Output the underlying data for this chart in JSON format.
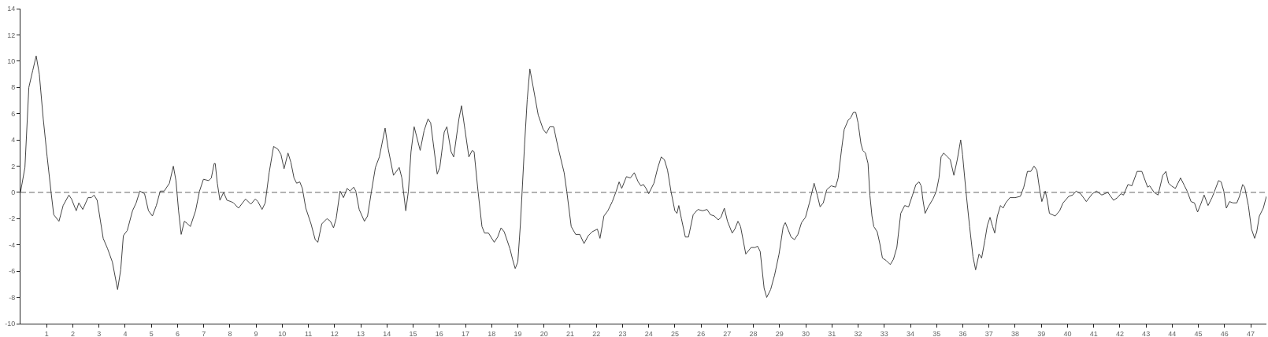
{
  "chart_data": {
    "type": "line",
    "x": [
      0,
      0.17,
      0.32,
      0.47,
      0.6,
      0.72,
      0.87,
      1.02,
      1.17,
      1.27,
      1.47,
      1.63,
      1.85,
      1.95,
      2.13,
      2.23,
      2.38,
      2.58,
      2.71,
      2.81,
      2.93,
      3.16,
      3.33,
      3.51,
      3.71,
      3.83,
      3.93,
      4.08,
      4.28,
      4.42,
      4.56,
      4.74,
      4.89,
      5.04,
      5.19,
      5.34,
      5.49,
      5.69,
      5.84,
      5.94,
      6.04,
      6.14,
      6.26,
      6.39,
      6.49,
      6.69,
      6.84,
      6.99,
      7.19,
      7.29,
      7.4,
      7.44,
      7.52,
      7.62,
      7.76,
      7.89,
      8.04,
      8.14,
      8.33,
      8.6,
      8.8,
      8.97,
      9.07,
      9.23,
      9.35,
      9.5,
      9.67,
      9.83,
      9.95,
      10.07,
      10.22,
      10.33,
      10.45,
      10.55,
      10.67,
      10.77,
      10.9,
      11.1,
      11.26,
      11.36,
      11.51,
      11.71,
      11.84,
      11.96,
      12.06,
      12.21,
      12.34,
      12.48,
      12.59,
      12.73,
      12.81,
      12.94,
      13.14,
      13.26,
      13.41,
      13.56,
      13.71,
      13.81,
      13.93,
      14.05,
      14.25,
      14.47,
      14.57,
      14.72,
      14.82,
      14.92,
      15.04,
      15.27,
      15.42,
      15.57,
      15.67,
      15.92,
      16.02,
      16.19,
      16.29,
      16.45,
      16.55,
      16.75,
      16.85,
      16.98,
      17.13,
      17.26,
      17.33,
      17.48,
      17.63,
      17.73,
      17.88,
      18.1,
      18.23,
      18.36,
      18.48,
      18.7,
      18.8,
      18.9,
      19,
      19.1,
      19.26,
      19.36,
      19.46,
      19.58,
      19.78,
      19.97,
      20.09,
      20.22,
      20.37,
      20.54,
      20.77,
      20.87,
      21.04,
      21.21,
      21.37,
      21.53,
      21.69,
      21.84,
      22.04,
      22.14,
      22.29,
      22.44,
      22.61,
      22.76,
      22.87,
      22.97,
      23.15,
      23.3,
      23.45,
      23.6,
      23.7,
      23.8,
      23.9,
      24,
      24.2,
      24.35,
      24.48,
      24.6,
      24.72,
      24.85,
      25,
      25.08,
      25.15,
      25.25,
      25.4,
      25.52,
      25.7,
      25.88,
      26.06,
      26.23,
      26.36,
      26.51,
      26.66,
      26.76,
      26.89,
      27.01,
      27.19,
      27.29,
      27.41,
      27.51,
      27.71,
      27.91,
      28.06,
      28.16,
      28.26,
      28.41,
      28.51,
      28.66,
      28.81,
      28.98,
      29.14,
      29.22,
      29.32,
      29.44,
      29.57,
      29.7,
      29.84,
      29.99,
      30.14,
      30.32,
      30.44,
      30.55,
      30.67,
      30.8,
      30.97,
      31.14,
      31.24,
      31.37,
      31.47,
      31.62,
      31.72,
      31.82,
      31.91,
      32,
      32.11,
      32.18,
      32.28,
      32.38,
      32.45,
      32.53,
      32.6,
      32.73,
      32.83,
      32.93,
      33.08,
      33.23,
      33.35,
      33.48,
      33.63,
      33.78,
      33.93,
      34.08,
      34.21,
      34.33,
      34.41,
      34.48,
      34.56,
      34.68,
      34.86,
      34.99,
      35.09,
      35.17,
      35.27,
      35.42,
      35.52,
      35.66,
      35.79,
      35.92,
      35.99,
      36.12,
      36.26,
      36.39,
      36.49,
      36.62,
      36.72,
      36.84,
      36.94,
      37.04,
      37.14,
      37.22,
      37.32,
      37.44,
      37.54,
      37.64,
      37.8,
      38,
      38.2,
      38.33,
      38.47,
      38.6,
      38.72,
      38.83,
      38.93,
      39.02,
      39.15,
      39.23,
      39.31,
      39.53,
      39.7,
      39.83,
      40.05,
      40.2,
      40.33,
      40.5,
      40.72,
      40.95,
      41.11,
      41.31,
      41.54,
      41.76,
      41.91,
      42.04,
      42.14,
      42.31,
      42.46,
      42.66,
      42.84,
      43.06,
      43.14,
      43.31,
      43.46,
      43.64,
      43.76,
      43.86,
      43.97,
      44.12,
      44.32,
      44.47,
      44.57,
      44.72,
      44.85,
      44.97,
      45.09,
      45.22,
      45.37,
      45.52,
      45.62,
      45.77,
      45.87,
      45.97,
      46.07,
      46.19,
      46.32,
      46.47,
      46.57,
      46.69,
      46.77,
      46.91,
      47.03,
      47.15,
      47.23,
      47.33,
      47.48,
      47.6
    ],
    "series": [
      {
        "color": "#444444",
        "values": [
          0,
          1.9,
          8.0,
          9.3,
          10.4,
          9.0,
          5.6,
          2.7,
          0,
          -1.7,
          -2.2,
          -1.0,
          -0.2,
          -0.5,
          -1.4,
          -0.8,
          -1.3,
          -0.4,
          -0.4,
          -0.2,
          -0.6,
          -3.5,
          -4.3,
          -5.3,
          -7.4,
          -5.9,
          -3.3,
          -2.9,
          -1.4,
          -0.8,
          0.1,
          -0.1,
          -1.4,
          -1.8,
          -1.0,
          0.1,
          0.1,
          0.7,
          2.0,
          0.9,
          -1.4,
          -3.2,
          -2.2,
          -2.4,
          -2.6,
          -1.4,
          0.1,
          1.0,
          0.9,
          1.1,
          2.2,
          2.2,
          0.7,
          -0.6,
          0,
          -0.6,
          -0.7,
          -0.8,
          -1.2,
          -0.5,
          -0.9,
          -0.5,
          -0.7,
          -1.3,
          -0.8,
          1.5,
          3.5,
          3.3,
          2.9,
          1.8,
          3.0,
          2.3,
          1.1,
          0.7,
          0.8,
          0.3,
          -1.2,
          -2.4,
          -3.6,
          -3.8,
          -2.4,
          -2.0,
          -2.2,
          -2.7,
          -2.0,
          0.1,
          -0.4,
          0.3,
          0.1,
          0.4,
          0.1,
          -1.3,
          -2.2,
          -1.8,
          0.1,
          1.9,
          2.7,
          3.7,
          4.9,
          3.3,
          1.3,
          1.9,
          1.1,
          -1.4,
          0.1,
          3.1,
          5.0,
          3.2,
          4.7,
          5.6,
          5.3,
          1.4,
          1.9,
          4.6,
          5.0,
          3.1,
          2.7,
          5.6,
          6.6,
          4.8,
          2.7,
          3.2,
          3.1,
          0.1,
          -2.6,
          -3.1,
          -3.1,
          -3.8,
          -3.4,
          -2.7,
          -3.0,
          -4.3,
          -5.1,
          -5.8,
          -5.3,
          -2.4,
          3.7,
          7.1,
          9.4,
          8.1,
          5.9,
          4.8,
          4.5,
          5.0,
          5.0,
          3.4,
          1.5,
          0.1,
          -2.6,
          -3.2,
          -3.2,
          -3.9,
          -3.3,
          -3.0,
          -2.8,
          -3.5,
          -1.8,
          -1.4,
          -0.7,
          0.1,
          0.8,
          0.3,
          1.2,
          1.1,
          1.5,
          0.8,
          0.5,
          0.6,
          0.3,
          -0.1,
          0.7,
          1.9,
          2.7,
          2.5,
          1.7,
          0.1,
          -1.4,
          -1.6,
          -1.0,
          -2.0,
          -3.4,
          -3.4,
          -1.7,
          -1.3,
          -1.4,
          -1.3,
          -1.7,
          -1.8,
          -2.1,
          -1.9,
          -1.2,
          -2.2,
          -3.1,
          -2.8,
          -2.2,
          -2.6,
          -4.7,
          -4.2,
          -4.2,
          -4.1,
          -4.5,
          -7.3,
          -8.0,
          -7.4,
          -6.3,
          -4.7,
          -2.6,
          -2.3,
          -2.8,
          -3.4,
          -3.6,
          -3.2,
          -2.3,
          -1.9,
          -0.8,
          0.7,
          -0.2,
          -1.1,
          -0.8,
          0.2,
          0.5,
          0.4,
          1.1,
          3.3,
          4.8,
          5.5,
          5.7,
          6.1,
          6.1,
          5.3,
          3.7,
          3.2,
          3.0,
          2.2,
          -0.2,
          -1.8,
          -2.6,
          -3.0,
          -3.9,
          -5.0,
          -5.2,
          -5.5,
          -5.1,
          -4.2,
          -1.6,
          -1.0,
          -1.1,
          -0.2,
          0.6,
          0.8,
          0.5,
          -0.6,
          -1.6,
          -1.1,
          -0.5,
          0.1,
          1.1,
          2.7,
          3.0,
          2.7,
          2.5,
          1.3,
          2.5,
          4.0,
          2.9,
          0.1,
          -2.6,
          -4.9,
          -5.9,
          -4.7,
          -5.0,
          -3.7,
          -2.5,
          -1.9,
          -2.6,
          -3.1,
          -1.8,
          -1.0,
          -1.2,
          -0.8,
          -0.4,
          -0.4,
          -0.3,
          0.4,
          1.6,
          1.6,
          2.0,
          1.7,
          0.3,
          -0.7,
          0.1,
          -0.6,
          -1.6,
          -1.8,
          -1.4,
          -0.8,
          -0.3,
          -0.2,
          0.1,
          -0.1,
          -0.7,
          -0.1,
          0.1,
          -0.2,
          0,
          -0.6,
          -0.4,
          -0.1,
          -0.2,
          0.6,
          0.5,
          1.6,
          1.6,
          0.4,
          0.5,
          0,
          -0.2,
          1.3,
          1.6,
          0.7,
          0.5,
          0.3,
          1.1,
          0.5,
          0.1,
          -0.7,
          -0.8,
          -1.5,
          -0.9,
          -0.2,
          -1.0,
          -0.4,
          0.1,
          0.9,
          0.8,
          0.1,
          -1.2,
          -0.7,
          -0.8,
          -0.8,
          -0.3,
          0.6,
          0.4,
          -1.0,
          -2.8,
          -3.5,
          -3.0,
          -1.8,
          -1.2,
          -0.3
        ]
      }
    ],
    "xlim": [
      0,
      47.6
    ],
    "xticks": [
      1,
      2,
      3,
      4,
      5,
      6,
      7,
      8,
      9,
      10,
      11,
      12,
      13,
      14,
      15,
      16,
      17,
      18,
      19,
      20,
      21,
      22,
      23,
      24,
      25,
      26,
      27,
      28,
      29,
      30,
      31,
      32,
      33,
      34,
      35,
      36,
      37,
      38,
      39,
      40,
      41,
      42,
      43,
      44,
      45,
      46,
      47
    ],
    "ylim": [
      -10,
      14
    ],
    "yticks": [
      -10,
      -8,
      -6,
      -4,
      -2,
      0,
      2,
      4,
      6,
      8,
      10,
      12,
      14
    ],
    "ref_lines": [
      {
        "axis": "y",
        "value": 0,
        "color": "#666666",
        "line_style": "dashed"
      }
    ]
  }
}
